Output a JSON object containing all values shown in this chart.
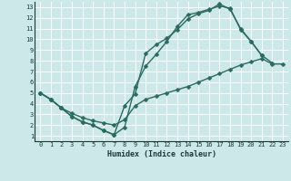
{
  "xlabel": "Humidex (Indice chaleur)",
  "xlim": [
    -0.5,
    23.5
  ],
  "ylim": [
    0.5,
    13.5
  ],
  "xticks": [
    0,
    1,
    2,
    3,
    4,
    5,
    6,
    7,
    8,
    9,
    10,
    11,
    12,
    13,
    14,
    15,
    16,
    17,
    18,
    19,
    20,
    21,
    22,
    23
  ],
  "yticks": [
    1,
    2,
    3,
    4,
    5,
    6,
    7,
    8,
    9,
    10,
    11,
    12,
    13
  ],
  "bg_color": "#cce8e8",
  "grid_color": "#ffffff",
  "line_color": "#2a6b60",
  "line1_x": [
    0,
    1,
    2,
    3,
    4,
    5,
    6,
    7,
    8,
    9,
    10,
    11,
    12,
    13,
    14,
    15,
    16,
    17,
    18,
    19,
    20,
    21,
    22,
    23
  ],
  "line1_y": [
    5.0,
    4.4,
    3.6,
    3.1,
    2.7,
    2.4,
    2.2,
    2.0,
    2.5,
    3.8,
    4.4,
    4.7,
    5.0,
    5.3,
    5.6,
    6.0,
    6.4,
    6.8,
    7.2,
    7.6,
    7.9,
    8.2,
    7.7,
    7.7
  ],
  "line2_x": [
    0,
    1,
    2,
    3,
    4,
    5,
    6,
    7,
    8,
    9,
    10,
    11,
    12,
    13,
    14,
    15,
    16,
    17,
    18,
    19,
    20,
    21,
    22
  ],
  "line2_y": [
    5.0,
    4.4,
    3.6,
    2.8,
    2.3,
    2.0,
    1.5,
    1.1,
    1.8,
    5.6,
    7.5,
    8.6,
    9.8,
    11.2,
    12.3,
    12.5,
    12.8,
    13.1,
    12.9,
    10.9,
    9.8,
    8.5,
    7.8
  ],
  "line3_x": [
    0,
    1,
    2,
    3,
    4,
    5,
    6,
    7,
    8,
    9,
    10,
    11,
    12,
    13,
    14,
    15,
    16,
    17,
    18,
    19,
    20,
    21
  ],
  "line3_y": [
    5.0,
    4.4,
    3.6,
    2.8,
    2.3,
    2.0,
    1.5,
    1.1,
    3.8,
    4.9,
    8.7,
    9.5,
    10.1,
    10.9,
    11.9,
    12.4,
    12.7,
    13.3,
    12.8,
    11.0,
    9.8,
    8.5
  ]
}
